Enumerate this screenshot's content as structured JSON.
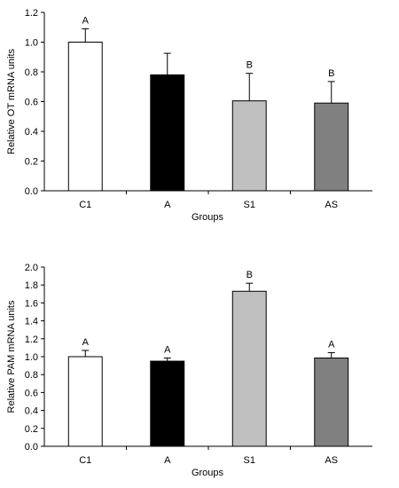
{
  "chart_data": [
    {
      "type": "bar",
      "categories": [
        "C1",
        "A",
        "S1",
        "AS"
      ],
      "values": [
        1.0,
        0.78,
        0.605,
        0.59
      ],
      "errors": [
        0.09,
        0.145,
        0.185,
        0.145
      ],
      "significance": [
        "A",
        "",
        "B",
        "B"
      ],
      "bar_colors": [
        "#ffffff",
        "#000000",
        "#c0c0c0",
        "#808080"
      ],
      "xlabel": "Groups",
      "ylabel": "Relative OT mRNA units",
      "ylim": [
        0,
        1.2
      ],
      "yticks": [
        "0.0",
        "0.2",
        "0.4",
        "0.6",
        "0.8",
        "1.0",
        "1.2"
      ],
      "grid": false,
      "legend": "none"
    },
    {
      "type": "bar",
      "categories": [
        "C1",
        "A",
        "S1",
        "AS"
      ],
      "values": [
        1.0,
        0.95,
        1.73,
        0.985
      ],
      "errors": [
        0.07,
        0.035,
        0.09,
        0.06
      ],
      "significance": [
        "A",
        "A",
        "B",
        "A"
      ],
      "bar_colors": [
        "#ffffff",
        "#000000",
        "#c0c0c0",
        "#808080"
      ],
      "xlabel": "Groups",
      "ylabel": "Relative PAM mRNA units",
      "ylim": [
        0,
        2.0
      ],
      "yticks": [
        "0.0",
        "0.2",
        "0.4",
        "0.6",
        "0.8",
        "1.0",
        "1.2",
        "1.4",
        "1.6",
        "1.8",
        "2.0"
      ],
      "grid": false,
      "legend": "none"
    }
  ]
}
